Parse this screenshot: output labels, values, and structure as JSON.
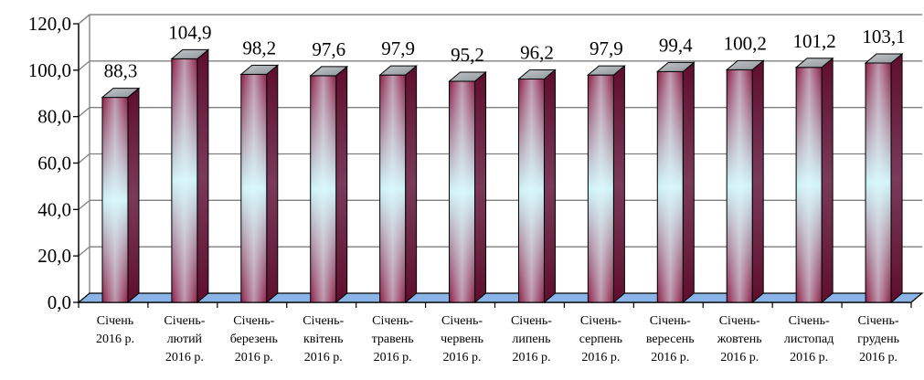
{
  "chart_data": {
    "type": "bar",
    "style": "3d-cylinder-column",
    "categories": [
      [
        "Січень",
        "2016 р."
      ],
      [
        "Січень-",
        "лютий",
        "2016 р."
      ],
      [
        "Січень-",
        "березень",
        "2016 р."
      ],
      [
        "Січень-",
        "квітень",
        "2016 р."
      ],
      [
        "Січень-",
        "травень",
        "2016 р."
      ],
      [
        "Січень-",
        "червень",
        "2016 р."
      ],
      [
        "Січень-",
        "липень",
        "2016 р."
      ],
      [
        "Січень-",
        "серпень",
        "2016 р."
      ],
      [
        "Січень-",
        "вересень",
        "2016 р."
      ],
      [
        "Січень-",
        "жовтень",
        "2016 р."
      ],
      [
        "Січень-",
        "листопад",
        "2016 р."
      ],
      [
        "Січень-",
        "грудень",
        "2016 р."
      ]
    ],
    "values": [
      88.3,
      104.9,
      98.2,
      97.6,
      97.9,
      95.2,
      96.2,
      97.9,
      99.4,
      100.2,
      101.2,
      103.1
    ],
    "data_labels": [
      "88,3",
      "104,9",
      "98,2",
      "97,6",
      "97,9",
      "95,2",
      "96,2",
      "97,9",
      "99,4",
      "100,2",
      "101,2",
      "103,1"
    ],
    "title": "",
    "xlabel": "",
    "ylabel": "",
    "ylim": [
      0,
      120
    ],
    "yticks": [
      0,
      20,
      40,
      60,
      80,
      100,
      120
    ],
    "ytick_labels": [
      "0,0",
      "20,0",
      "40,0",
      "60,0",
      "80,0",
      "100,0",
      "120,0"
    ],
    "grid": true,
    "legend": "none",
    "colors": {
      "bar_dark": "#8a2048",
      "bar_light": "#c9f2f6",
      "bar_top": "#a9aeb2",
      "floor": "#8ab4e8",
      "grid": "#808080"
    }
  }
}
